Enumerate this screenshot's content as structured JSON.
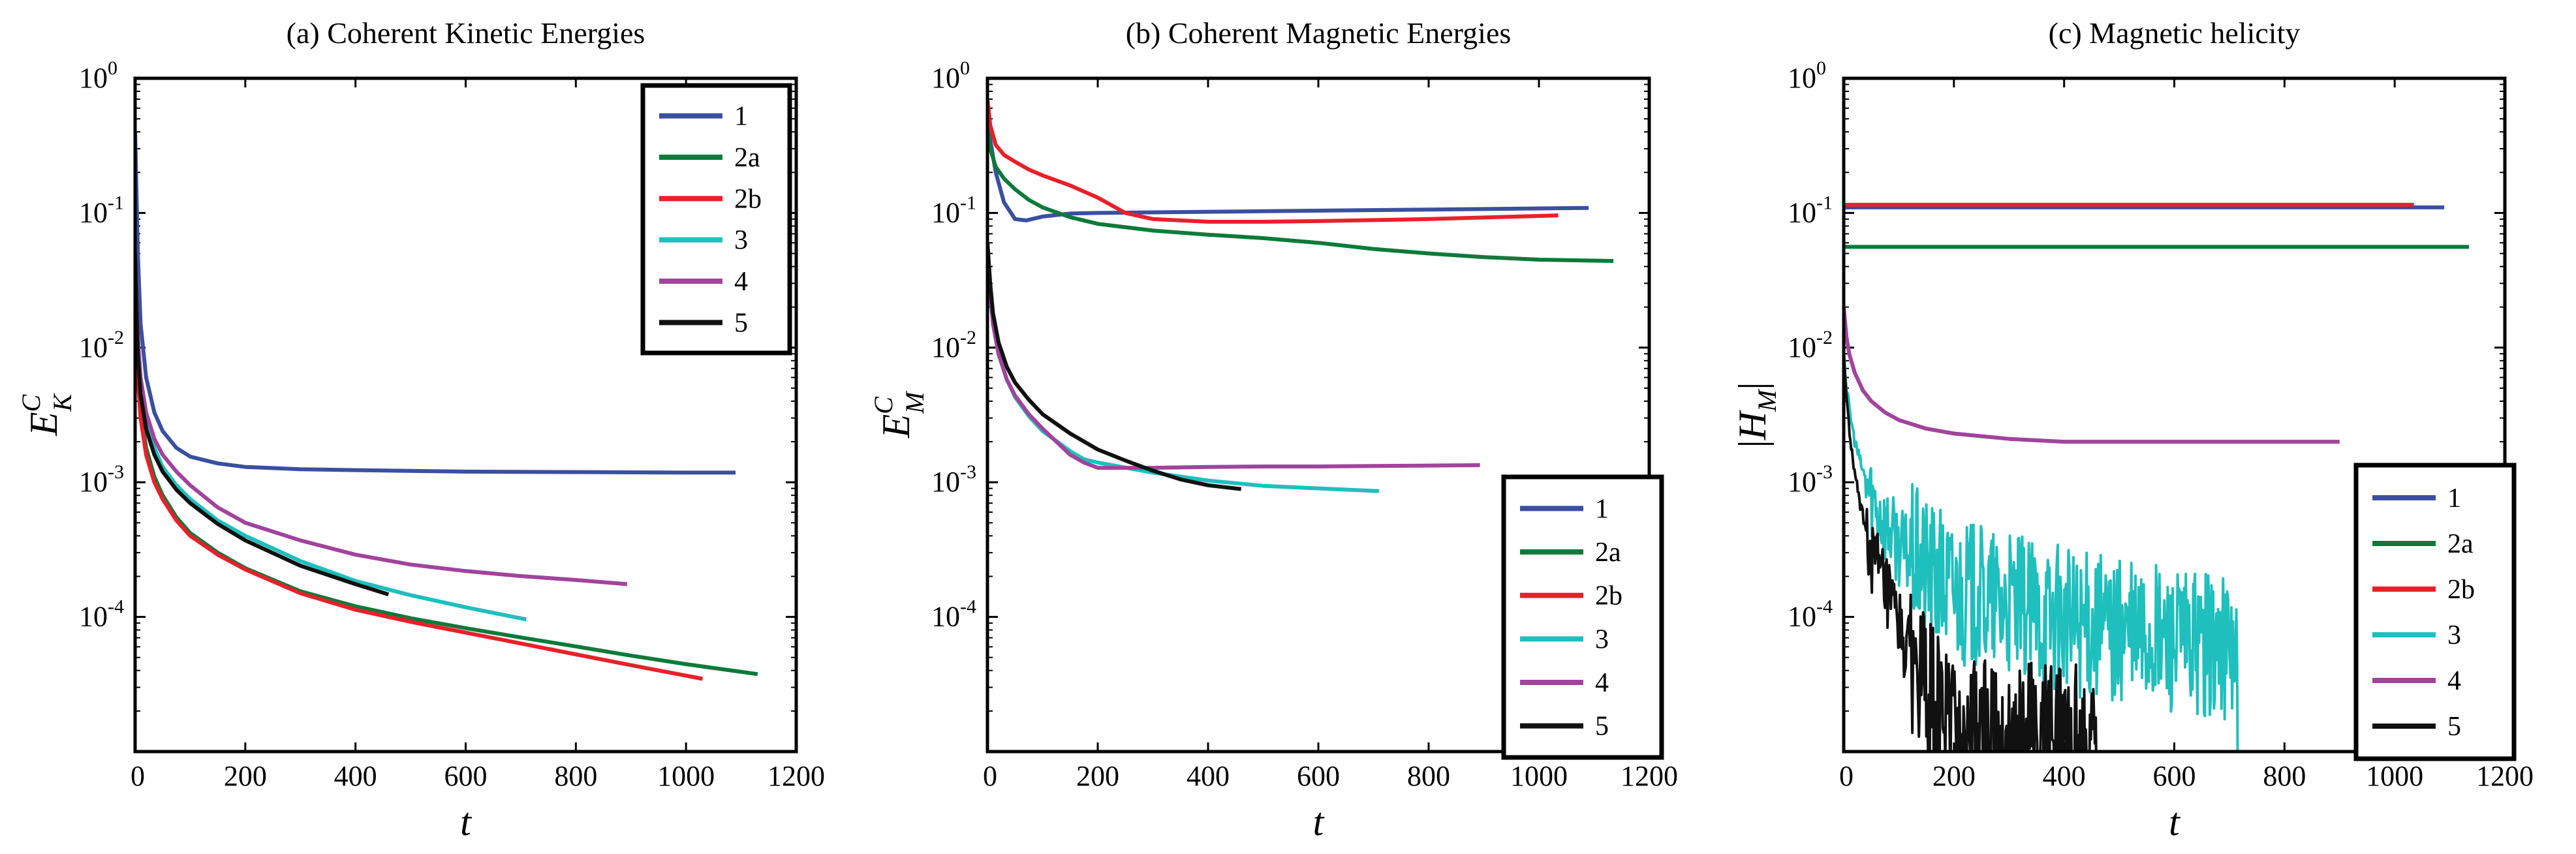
{
  "chart_data": [
    {
      "type": "line",
      "title": "(a) Coherent Kinetic Energies",
      "xlabel": "t",
      "ylabel": "E_K^C",
      "xlim": [
        0,
        1200
      ],
      "ylim": [
        1e-05,
        1
      ],
      "yscale": "log",
      "xticks": [
        "0",
        "200",
        "400",
        "600",
        "800",
        "1000",
        "1200"
      ],
      "yticks": [
        {
          "base": "10",
          "exp": "0"
        },
        {
          "base": "10",
          "exp": "-1"
        },
        {
          "base": "10",
          "exp": "-2"
        },
        {
          "base": "10",
          "exp": "-3"
        },
        {
          "base": "10",
          "exp": "-4"
        }
      ],
      "legend_position": "top-right",
      "grid": false,
      "series": [
        {
          "name": "1",
          "color": "#3a4fa0",
          "x": [
            0,
            5,
            10,
            20,
            35,
            50,
            75,
            100,
            150,
            200,
            300,
            400,
            600,
            800,
            1000,
            1090
          ],
          "y": [
            0.4,
            0.05,
            0.015,
            0.006,
            0.0033,
            0.0024,
            0.0018,
            0.00155,
            0.00138,
            0.0013,
            0.00125,
            0.00123,
            0.0012,
            0.00119,
            0.00118,
            0.00118
          ]
        },
        {
          "name": "2a",
          "color": "#0d7a3a",
          "x": [
            0,
            5,
            10,
            20,
            35,
            50,
            75,
            100,
            150,
            200,
            300,
            400,
            500,
            600,
            700,
            800,
            900,
            1000,
            1130
          ],
          "y": [
            0.05,
            0.007,
            0.0035,
            0.0018,
            0.0011,
            0.0008,
            0.00055,
            0.00042,
            0.0003,
            0.00023,
            0.000155,
            0.00012,
            9.78e-05,
            8.25e-05,
            7.04e-05,
            6.04e-05,
            5.16e-05,
            4.46e-05,
            3.76e-05
          ]
        },
        {
          "name": "2b",
          "color": "#e8202a",
          "x": [
            0,
            5,
            10,
            20,
            35,
            50,
            75,
            100,
            150,
            200,
            300,
            400,
            500,
            600,
            700,
            800,
            900,
            1030
          ],
          "y": [
            0.04,
            0.006,
            0.003,
            0.0016,
            0.001,
            0.00075,
            0.00052,
            0.0004,
            0.00029,
            0.000225,
            0.00015,
            0.000113,
            9.2e-05,
            7.64e-05,
            6.35e-05,
            5.27e-05,
            4.38e-05,
            3.47e-05
          ]
        },
        {
          "name": "3",
          "color": "#1fbfbd",
          "x": [
            0,
            5,
            10,
            20,
            35,
            50,
            75,
            100,
            150,
            200,
            300,
            400,
            500,
            600,
            710
          ],
          "y": [
            0.05,
            0.01,
            0.005,
            0.0028,
            0.0018,
            0.0013,
            0.00095,
            0.00075,
            0.00052,
            0.0004,
            0.00026,
            0.000185,
            0.000145,
            0.000118,
            9.57e-05
          ]
        },
        {
          "name": "4",
          "color": "#a0449c",
          "x": [
            0,
            5,
            10,
            20,
            35,
            50,
            75,
            100,
            150,
            200,
            300,
            400,
            500,
            600,
            700,
            800,
            893
          ],
          "y": [
            0.05,
            0.012,
            0.006,
            0.0033,
            0.0021,
            0.0016,
            0.0012,
            0.00095,
            0.00065,
            0.0005,
            0.00037,
            0.00029,
            0.000245,
            0.000219,
            0.000201,
            0.000188,
            0.000175
          ]
        },
        {
          "name": "5",
          "color": "#111111",
          "x": [
            0,
            5,
            10,
            20,
            35,
            50,
            75,
            100,
            150,
            200,
            300,
            400,
            460
          ],
          "y": [
            0.05,
            0.009,
            0.0045,
            0.0025,
            0.0016,
            0.0012,
            0.00088,
            0.0007,
            0.00049,
            0.00037,
            0.00024,
            0.000175,
            0.000147
          ]
        }
      ]
    },
    {
      "type": "line",
      "title": "(b) Coherent Magnetic Energies",
      "xlabel": "t",
      "ylabel": "E_M^C",
      "xlim": [
        0,
        1200
      ],
      "ylim": [
        1e-05,
        1
      ],
      "yscale": "log",
      "xticks": [
        "0",
        "200",
        "400",
        "600",
        "800",
        "1000",
        "1200"
      ],
      "yticks": [
        {
          "base": "10",
          "exp": "0"
        },
        {
          "base": "10",
          "exp": "-1"
        },
        {
          "base": "10",
          "exp": "-2"
        },
        {
          "base": "10",
          "exp": "-3"
        },
        {
          "base": "10",
          "exp": "-4"
        }
      ],
      "legend_position": "bottom-right",
      "grid": false,
      "series": [
        {
          "name": "1",
          "color": "#3a4fa0",
          "x": [
            0,
            5,
            15,
            30,
            50,
            70,
            100,
            150,
            200,
            300,
            400,
            500,
            600,
            800,
            1000,
            1090
          ],
          "y": [
            0.55,
            0.35,
            0.2,
            0.12,
            0.09,
            0.088,
            0.094,
            0.099,
            0.1,
            0.101,
            0.102,
            0.103,
            0.104,
            0.106,
            0.108,
            0.109
          ]
        },
        {
          "name": "2a",
          "color": "#0d7a3a",
          "x": [
            0,
            5,
            15,
            30,
            50,
            75,
            100,
            150,
            200,
            300,
            400,
            500,
            600,
            700,
            800,
            900,
            1000,
            1135
          ],
          "y": [
            0.45,
            0.3,
            0.22,
            0.18,
            0.15,
            0.125,
            0.11,
            0.093,
            0.083,
            0.074,
            0.069,
            0.065,
            0.06,
            0.054,
            0.05,
            0.047,
            0.045,
            0.044
          ]
        },
        {
          "name": "2b",
          "color": "#e8202a",
          "x": [
            0,
            5,
            15,
            30,
            50,
            75,
            100,
            150,
            200,
            250,
            300,
            400,
            500,
            600,
            800,
            1000,
            1035
          ],
          "y": [
            0.7,
            0.45,
            0.32,
            0.27,
            0.24,
            0.21,
            0.19,
            0.16,
            0.13,
            0.1,
            0.09,
            0.086,
            0.086,
            0.087,
            0.09,
            0.095,
            0.096
          ]
        },
        {
          "name": "3",
          "color": "#1fbfbd",
          "x": [
            0,
            5,
            10,
            20,
            35,
            50,
            75,
            100,
            150,
            175,
            200,
            300,
            400,
            500,
            600,
            710
          ],
          "y": [
            0.06,
            0.025,
            0.015,
            0.009,
            0.0058,
            0.0043,
            0.0031,
            0.0024,
            0.0017,
            0.00148,
            0.0014,
            0.00118,
            0.00103,
            0.00094,
            0.0009,
            0.00086
          ]
        },
        {
          "name": "4",
          "color": "#a0449c",
          "x": [
            0,
            5,
            10,
            20,
            35,
            50,
            75,
            100,
            150,
            175,
            200,
            300,
            400,
            500,
            600,
            700,
            800,
            893
          ],
          "y": [
            0.06,
            0.025,
            0.015,
            0.009,
            0.0058,
            0.0044,
            0.0032,
            0.0025,
            0.0016,
            0.0014,
            0.00128,
            0.00128,
            0.0013,
            0.00131,
            0.00131,
            0.00132,
            0.00133,
            0.00134
          ]
        },
        {
          "name": "5",
          "color": "#111111",
          "x": [
            0,
            5,
            10,
            20,
            35,
            50,
            75,
            100,
            150,
            200,
            250,
            300,
            350,
            400,
            460
          ],
          "y": [
            0.06,
            0.03,
            0.018,
            0.011,
            0.0072,
            0.0055,
            0.0041,
            0.0032,
            0.0023,
            0.00175,
            0.00145,
            0.00122,
            0.00105,
            0.00095,
            0.00089
          ]
        }
      ]
    },
    {
      "type": "line",
      "title": "(c) Magnetic helicity",
      "xlabel": "t",
      "ylabel": "|H_M|",
      "xlim": [
        0,
        1200
      ],
      "ylim": [
        1e-05,
        1
      ],
      "yscale": "log",
      "xticks": [
        "0",
        "200",
        "400",
        "600",
        "800",
        "1000",
        "1200"
      ],
      "yticks": [
        {
          "base": "10",
          "exp": "0"
        },
        {
          "base": "10",
          "exp": "-1"
        },
        {
          "base": "10",
          "exp": "-2"
        },
        {
          "base": "10",
          "exp": "-3"
        },
        {
          "base": "10",
          "exp": "-4"
        }
      ],
      "legend_position": "bottom-right",
      "grid": false,
      "series": [
        {
          "name": "1",
          "color": "#3a4fa0",
          "x": [
            0,
            200,
            400,
            600,
            800,
            1000,
            1090
          ],
          "y": [
            0.11,
            0.11,
            0.11,
            0.11,
            0.11,
            0.11,
            0.11
          ]
        },
        {
          "name": "2a",
          "color": "#0d7a3a",
          "x": [
            0,
            200,
            400,
            600,
            800,
            1000,
            1135
          ],
          "y": [
            0.056,
            0.056,
            0.056,
            0.056,
            0.056,
            0.056,
            0.056
          ]
        },
        {
          "name": "2b",
          "color": "#e8202a",
          "x": [
            0,
            200,
            400,
            600,
            800,
            1000,
            1035
          ],
          "y": [
            0.115,
            0.115,
            0.115,
            0.115,
            0.115,
            0.115,
            0.115
          ]
        },
        {
          "name": "3",
          "color": "#1fbfbd",
          "x": [
            0,
            5,
            10,
            20,
            35,
            50,
            75,
            100,
            150,
            200,
            250,
            300,
            350,
            400,
            450,
            500,
            550,
            600,
            650,
            700,
            715
          ],
          "y": [
            0.01,
            0.005,
            0.0035,
            0.002,
            0.0012,
            0.0008,
            0.0005,
            0.00034,
            0.00022,
            0.00016,
            0.000135,
            0.00012,
            0.000105,
            9.5e-05,
            8.5e-05,
            7.5e-05,
            7e-05,
            6.5e-05,
            6e-05,
            5.8e-05,
            5.5e-05
          ],
          "noise": true
        },
        {
          "name": "4",
          "color": "#a0449c",
          "x": [
            0,
            5,
            10,
            20,
            35,
            50,
            75,
            100,
            150,
            200,
            300,
            400,
            500,
            600,
            700,
            800,
            900
          ],
          "y": [
            0.02,
            0.012,
            0.009,
            0.0065,
            0.0048,
            0.004,
            0.0033,
            0.0029,
            0.0025,
            0.0023,
            0.0021,
            0.002,
            0.002,
            0.002,
            0.002,
            0.002,
            0.002
          ]
        },
        {
          "name": "5",
          "color": "#111111",
          "x": [
            0,
            5,
            10,
            20,
            35,
            50,
            75,
            100,
            125,
            150,
            175,
            200,
            250,
            300,
            350,
            400,
            460
          ],
          "y": [
            0.01,
            0.004,
            0.0025,
            0.0011,
            0.00055,
            0.0003,
            0.00015,
            8e-05,
            4.5e-05,
            2.8e-05,
            2e-05,
            1.6e-05,
            1.4e-05,
            1.3e-05,
            1.3e-05,
            1.3e-05,
            1.3e-05
          ],
          "noise": true
        }
      ]
    }
  ]
}
